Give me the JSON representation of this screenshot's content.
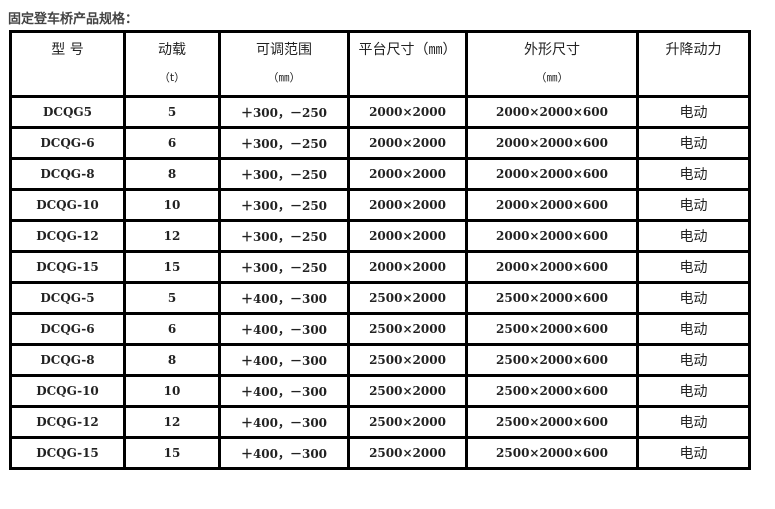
{
  "title": "固定登车桥产品规格：",
  "headers": [
    {
      "label": "型 号",
      "unit": ""
    },
    {
      "label": "动载",
      "unit": "（t）"
    },
    {
      "label": "可调范围",
      "unit": "（㎜）"
    },
    {
      "label": "平台尺寸（㎜）",
      "unit": ""
    },
    {
      "label": "外形尺寸",
      "unit": "（㎜）"
    },
    {
      "label": "升降动力",
      "unit": ""
    }
  ],
  "rows": [
    [
      "DCQG5",
      "5",
      "＋300，－250",
      "2000×2000",
      "2000×2000×600",
      "电动"
    ],
    [
      "DCQG-6",
      "6",
      "＋300，－250",
      "2000×2000",
      "2000×2000×600",
      "电动"
    ],
    [
      "DCQG-8",
      "8",
      "＋300，－250",
      "2000×2000",
      "2000×2000×600",
      "电动"
    ],
    [
      "DCQG-10",
      "10",
      "＋300，－250",
      "2000×2000",
      "2000×2000×600",
      "电动"
    ],
    [
      "DCQG-12",
      "12",
      "＋300，－250",
      "2000×2000",
      "2000×2000×600",
      "电动"
    ],
    [
      "DCQG-15",
      "15",
      "＋300，－250",
      "2000×2000",
      "2000×2000×600",
      "电动"
    ],
    [
      "DCQG-5",
      "5",
      "＋400，－300",
      "2500×2000",
      "2500×2000×600",
      "电动"
    ],
    [
      "DCQG-6",
      "6",
      "＋400，－300",
      "2500×2000",
      "2500×2000×600",
      "电动"
    ],
    [
      "DCQG-8",
      "8",
      "＋400，－300",
      "2500×2000",
      "2500×2000×600",
      "电动"
    ],
    [
      "DCQG-10",
      "10",
      "＋400，－300",
      "2500×2000",
      "2500×2000×600",
      "电动"
    ],
    [
      "DCQG-12",
      "12",
      "＋400，－300",
      "2500×2000",
      "2500×2000×600",
      "电动"
    ],
    [
      "DCQG-15",
      "15",
      "＋400，－300",
      "2500×2000",
      "2500×2000×600",
      "电动"
    ]
  ]
}
